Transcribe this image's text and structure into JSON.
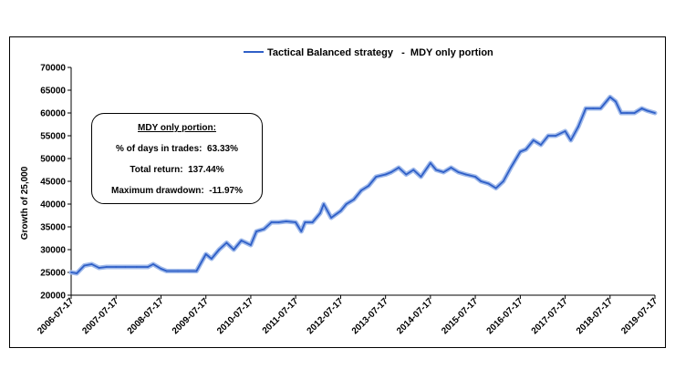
{
  "chart_data": {
    "type": "line",
    "title": "",
    "xlabel": "",
    "ylabel": "Growth of 25,000",
    "ylim": [
      20000,
      70000
    ],
    "yticks": [
      "20000",
      "25000",
      "30000",
      "35000",
      "40000",
      "45000",
      "50000",
      "55000",
      "60000",
      "65000",
      "70000"
    ],
    "xticks": [
      "2006-07-17",
      "2007-07-17",
      "2008-07-17",
      "2009-07-17",
      "2010-07-17",
      "2011-07-17",
      "2012-07-17",
      "2013-07-17",
      "2014-07-17",
      "2015-07-17",
      "2016-07-17",
      "2017-07-17",
      "2018-07-17",
      "2019-07-17"
    ],
    "legend": "top-center",
    "grid": false,
    "series": [
      {
        "name": "Tactical Balanced strategy   -  MDY only portion",
        "color": "#2f5fc7",
        "x": [
          "2006-07-17",
          "2006-09-01",
          "2006-11-01",
          "2007-01-01",
          "2007-03-01",
          "2007-05-01",
          "2007-07-17",
          "2007-10-01",
          "2008-01-01",
          "2008-04-01",
          "2008-05-15",
          "2008-07-17",
          "2008-09-01",
          "2008-12-01",
          "2009-03-01",
          "2009-05-01",
          "2009-07-17",
          "2009-09-01",
          "2009-11-01",
          "2010-01-01",
          "2010-03-01",
          "2010-05-01",
          "2010-07-17",
          "2010-09-01",
          "2010-11-01",
          "2011-01-01",
          "2011-03-01",
          "2011-05-01",
          "2011-07-17",
          "2011-09-01",
          "2011-10-01",
          "2011-12-01",
          "2012-02-01",
          "2012-03-01",
          "2012-05-01",
          "2012-07-17",
          "2012-09-01",
          "2012-11-01",
          "2013-01-01",
          "2013-03-01",
          "2013-05-01",
          "2013-07-17",
          "2013-09-01",
          "2013-11-01",
          "2014-01-01",
          "2014-03-01",
          "2014-05-01",
          "2014-07-17",
          "2014-09-01",
          "2014-11-01",
          "2015-01-01",
          "2015-03-01",
          "2015-05-01",
          "2015-07-17",
          "2015-09-01",
          "2015-11-01",
          "2016-01-01",
          "2016-03-01",
          "2016-05-01",
          "2016-07-17",
          "2016-09-01",
          "2016-11-01",
          "2017-01-01",
          "2017-03-01",
          "2017-05-01",
          "2017-07-17",
          "2017-09-01",
          "2017-11-01",
          "2018-01-01",
          "2018-03-01",
          "2018-05-01",
          "2018-07-17",
          "2018-09-01",
          "2018-10-15",
          "2018-12-01",
          "2019-02-01",
          "2019-04-01",
          "2019-05-15",
          "2019-07-17"
        ],
        "values": [
          25000,
          24800,
          26500,
          26800,
          26000,
          26200,
          26200,
          26200,
          26200,
          26200,
          26800,
          25800,
          25300,
          25300,
          25300,
          25300,
          29000,
          28000,
          30000,
          31500,
          30000,
          32000,
          31000,
          34000,
          34500,
          36000,
          36000,
          36200,
          36000,
          34000,
          36000,
          36000,
          38000,
          40000,
          37000,
          38500,
          40000,
          41000,
          43000,
          44000,
          46000,
          46500,
          47000,
          48000,
          46500,
          47500,
          46000,
          49000,
          47500,
          47000,
          48000,
          47000,
          46500,
          46000,
          45000,
          44500,
          43500,
          45000,
          48000,
          51500,
          52000,
          54000,
          53000,
          55000,
          55000,
          56000,
          54000,
          57000,
          61000,
          61000,
          61000,
          63500,
          62500,
          60000,
          60000,
          60000,
          61000,
          60500,
          60000
        ]
      }
    ]
  },
  "stats": {
    "heading": "MDY only portion:",
    "days_label": "% of days in trades:",
    "days_value": "63.33%",
    "return_label": "Total return:",
    "return_value": "137.44%",
    "drawdown_label": "Maximum drawdown:",
    "drawdown_value": "-11.97%"
  }
}
